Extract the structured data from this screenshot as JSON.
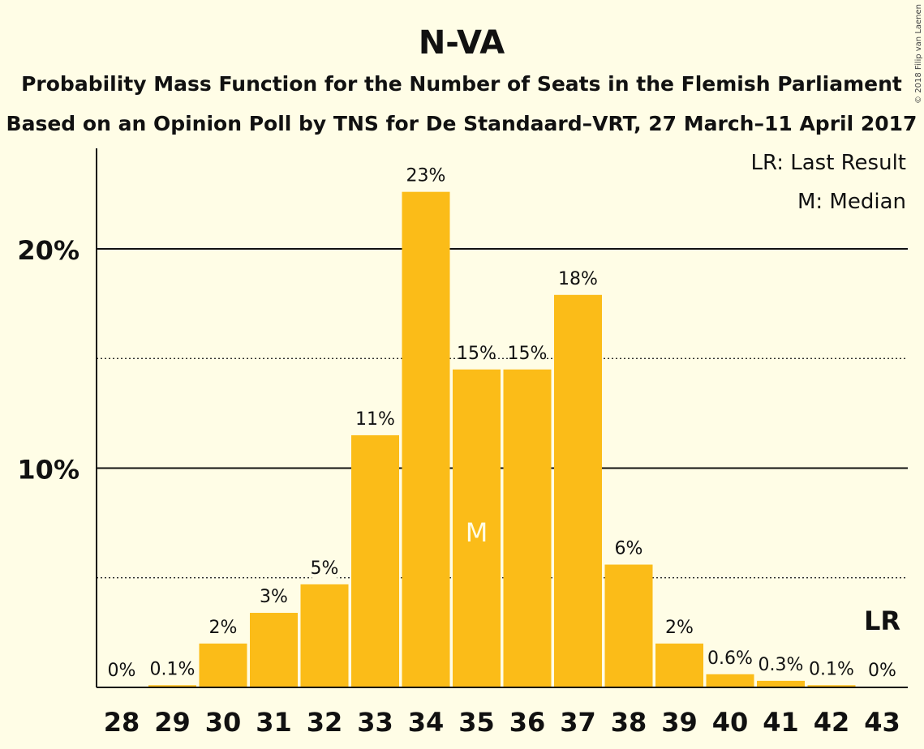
{
  "chart_data": {
    "type": "bar",
    "title": "N-VA",
    "subtitle_line1": "Probability Mass Function for the Number of Seats in the Flemish Parliament",
    "subtitle_line2": "Based on an Opinion Poll by TNS for De Standaard–VRT, 27 March–11 April 2017",
    "copyright": "© 2018 Filip van Laenen",
    "legend": [
      "LR: Last Result",
      "M: Median"
    ],
    "categories": [
      "28",
      "29",
      "30",
      "31",
      "32",
      "33",
      "34",
      "35",
      "36",
      "37",
      "38",
      "39",
      "40",
      "41",
      "42",
      "43"
    ],
    "values": [
      0.02,
      0.1,
      2.0,
      3.4,
      4.7,
      11.5,
      22.6,
      14.5,
      14.5,
      17.9,
      5.6,
      2.0,
      0.6,
      0.3,
      0.1,
      0.0
    ],
    "value_labels": [
      "0%",
      "0.1%",
      "2%",
      "3%",
      "5%",
      "11%",
      "23%",
      "15%",
      "15%",
      "18%",
      "6%",
      "2%",
      "0.6%",
      "0.3%",
      "0.1%",
      "0%"
    ],
    "yticks": [
      {
        "value": 10,
        "label": "10%"
      },
      {
        "value": 20,
        "label": "20%"
      }
    ],
    "dotted_lines": [
      5,
      15
    ],
    "ylim": [
      0,
      24.5
    ],
    "median_category": "35",
    "median_label": "M",
    "last_result_category": "43",
    "last_result_label": "LR",
    "bar_color": "#FBBC18",
    "grid": true,
    "legend_position": "top-right"
  }
}
